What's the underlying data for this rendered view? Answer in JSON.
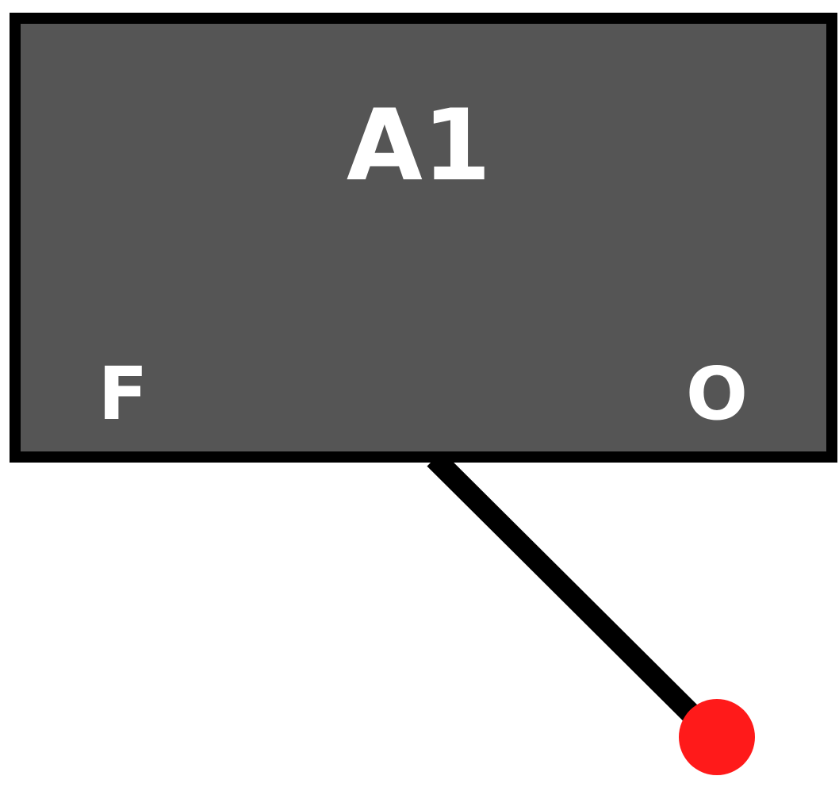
{
  "block": {
    "title": "A1",
    "left_label": "F",
    "right_label": "O",
    "fill_color": "#555555",
    "border_color": "#000000"
  },
  "connector": {
    "color": "#000000"
  },
  "endpoint": {
    "color": "#ff1a1a"
  }
}
